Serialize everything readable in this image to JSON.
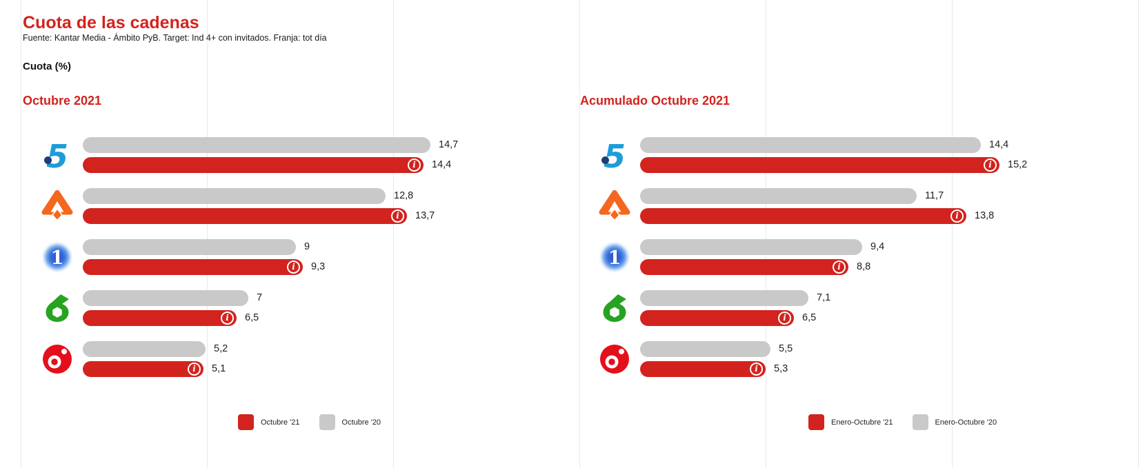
{
  "page": {
    "title": "Cuota de las cadenas",
    "source_note": "Fuente: Kantar Media - Ámbito PyB. Target: Ind 4+ con invitados. Franja: tot día",
    "unit_label": "Cuota (%)"
  },
  "colors": {
    "accent_red": "#d2231e",
    "bar_current": "#d2231e",
    "bar_previous": "#c9c9c9",
    "grid_line": "#e8e8e8",
    "telecinco_blue": "#1e9cd8",
    "antena3_orange": "#f4671e",
    "la1_blue": "#2e72dd",
    "lasexta_green": "#27a322",
    "cuatro_red": "#e40f1b"
  },
  "icons": {
    "info_glyph": "i"
  },
  "channels": [
    "Telecinco",
    "Antena 3",
    "La 1",
    "laSexta",
    "Cuatro"
  ],
  "chart_data": [
    {
      "type": "bar",
      "orientation": "horizontal",
      "title": "Octubre 2021",
      "categories": [
        "Telecinco",
        "Antena 3",
        "La 1",
        "laSexta",
        "Cuatro"
      ],
      "series": [
        {
          "name": "Octubre '21",
          "color": "#d2231e",
          "values": [
            14.4,
            13.7,
            9.3,
            6.5,
            5.1
          ],
          "labels": [
            "14,4",
            "13,7",
            "9,3",
            "6,5",
            "5,1"
          ]
        },
        {
          "name": "Octubre '20",
          "color": "#c9c9c9",
          "values": [
            14.7,
            12.8,
            9.0,
            7.0,
            5.2
          ],
          "labels": [
            "14,7",
            "12,8",
            "9",
            "7",
            "5,2"
          ]
        }
      ],
      "xlim": [
        0,
        16
      ],
      "grid": true,
      "legend_position": "bottom",
      "value_labels": true
    },
    {
      "type": "bar",
      "orientation": "horizontal",
      "title": "Acumulado Octubre 2021",
      "categories": [
        "Telecinco",
        "Antena 3",
        "La 1",
        "laSexta",
        "Cuatro"
      ],
      "series": [
        {
          "name": "Enero-Octubre '21",
          "color": "#d2231e",
          "values": [
            15.2,
            13.8,
            8.8,
            6.5,
            5.3
          ],
          "labels": [
            "15,2",
            "13,8",
            "8,8",
            "6,5",
            "5,3"
          ]
        },
        {
          "name": "Enero-Octubre '20",
          "color": "#c9c9c9",
          "values": [
            14.4,
            11.7,
            9.4,
            7.1,
            5.5
          ],
          "labels": [
            "14,4",
            "11,7",
            "9,4",
            "7,1",
            "5,5"
          ]
        }
      ],
      "xlim": [
        0,
        16
      ],
      "grid": true,
      "legend_position": "bottom",
      "value_labels": true
    }
  ]
}
